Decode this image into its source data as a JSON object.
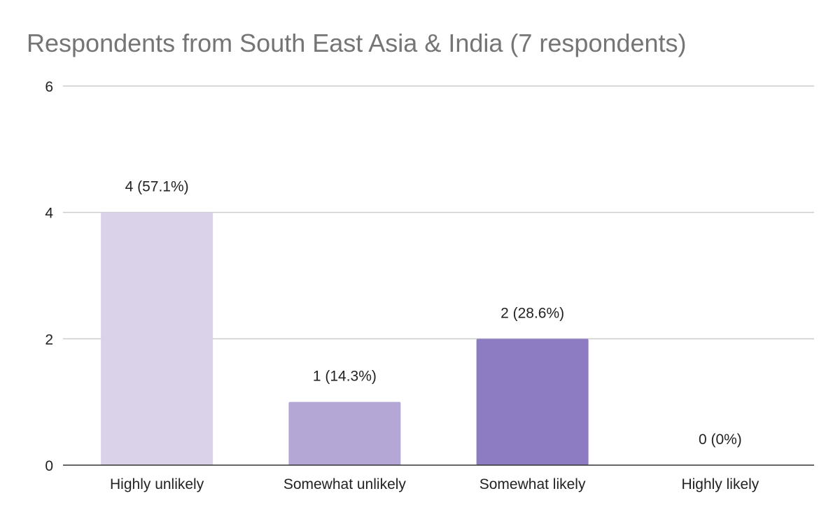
{
  "chart_data": {
    "type": "bar",
    "title": "Respondents from South East Asia & India (7 respondents)",
    "xlabel": "",
    "ylabel": "",
    "categories": [
      "Highly unlikely",
      "Somewhat unlikely",
      "Somewhat likely",
      "Highly likely"
    ],
    "values": [
      4,
      1,
      2,
      0
    ],
    "data_labels": [
      "4 (57.1%)",
      "1 (14.3%)",
      "2 (28.6%)",
      "0 (0%)"
    ],
    "bar_colors": [
      "#d9d2e9",
      "#b4a7d6",
      "#8e7cc3",
      "#674ea7"
    ],
    "ylim": [
      0,
      6
    ],
    "yticks": [
      0,
      2,
      4,
      6
    ],
    "grid": true,
    "legend": "none"
  }
}
